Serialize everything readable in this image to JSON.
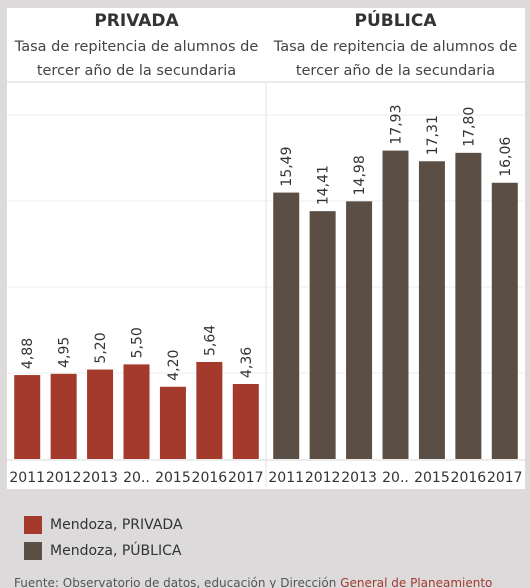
{
  "chart_data": {
    "type": "bar",
    "panels": [
      {
        "header": "PRIVADA",
        "subtitle_lines": [
          "Tasa de repitencia de alumnos de",
          "tercer año de la secundaria"
        ],
        "categories": [
          "2011",
          "2012",
          "2013",
          "20..",
          "2015",
          "2016",
          "2017"
        ],
        "values": [
          4.88,
          4.95,
          5.2,
          5.5,
          4.2,
          5.64,
          4.36
        ],
        "value_labels": [
          "4,88",
          "4,95",
          "5,20",
          "5,50",
          "4,20",
          "5,64",
          "4,36"
        ],
        "color": "#a33a2c"
      },
      {
        "header": "PÚBLICA",
        "subtitle_lines": [
          "Tasa de repitencia de alumnos de",
          "tercer año de la secundaria"
        ],
        "categories": [
          "2011",
          "2012",
          "2013",
          "20..",
          "2015",
          "2016",
          "2017"
        ],
        "values": [
          15.49,
          14.41,
          14.98,
          17.93,
          17.31,
          17.8,
          16.06
        ],
        "value_labels": [
          "15,49",
          "14,41",
          "14,98",
          "17,93",
          "17,31",
          "17,80",
          "16,06"
        ],
        "color": "#5b4f45"
      }
    ],
    "ylim": [
      0,
      20
    ],
    "grid": true,
    "legend_position": "bottom-left",
    "series": [
      {
        "name": "Mendoza, PRIVADA",
        "color": "#a33a2c"
      },
      {
        "name": "Mendoza, PÚBLICA",
        "color": "#5b4f45"
      }
    ]
  },
  "footer": {
    "text": "Fuente: Observatorio de datos, educación y Dirección",
    "accent": "General de Planeamiento"
  }
}
